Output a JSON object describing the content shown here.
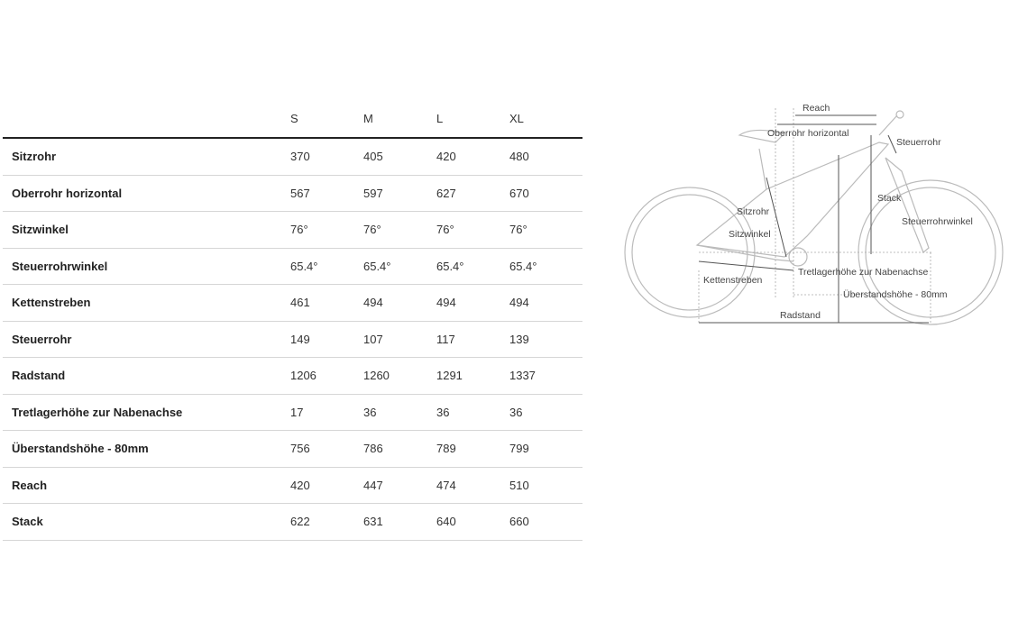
{
  "table": {
    "sizes": [
      "S",
      "M",
      "L",
      "XL"
    ],
    "rows": [
      {
        "label": "Sitzrohr",
        "values": [
          "370",
          "405",
          "420",
          "480"
        ]
      },
      {
        "label": "Oberrohr horizontal",
        "values": [
          "567",
          "597",
          "627",
          "670"
        ]
      },
      {
        "label": "Sitzwinkel",
        "values": [
          "76°",
          "76°",
          "76°",
          "76°"
        ]
      },
      {
        "label": "Steuerrohrwinkel",
        "values": [
          "65.4°",
          "65.4°",
          "65.4°",
          "65.4°"
        ]
      },
      {
        "label": "Kettenstreben",
        "values": [
          "461",
          "494",
          "494",
          "494"
        ]
      },
      {
        "label": "Steuerrohr",
        "values": [
          "149",
          "107",
          "117",
          "139"
        ]
      },
      {
        "label": "Radstand",
        "values": [
          "1206",
          "1260",
          "1291",
          "1337"
        ]
      },
      {
        "label": "Tretlagerhöhe zur Nabenachse",
        "values": [
          "17",
          "36",
          "36",
          "36"
        ]
      },
      {
        "label": "Überstandshöhe - 80mm",
        "values": [
          "756",
          "786",
          "789",
          "799"
        ]
      },
      {
        "label": "Reach",
        "values": [
          "420",
          "447",
          "474",
          "510"
        ]
      },
      {
        "label": "Stack",
        "values": [
          "622",
          "631",
          "640",
          "660"
        ]
      }
    ]
  },
  "diagram": {
    "labels": {
      "reach": "Reach",
      "top_tube": "Oberrohr horizontal",
      "head_tube": "Steuerrohr",
      "stack": "Stack",
      "seat_tube": "Sitzrohr",
      "head_angle": "Steuerrohrwinkel",
      "seat_angle": "Sitzwinkel",
      "bb_drop": "Tretlagerhöhe zur Nabenachse",
      "chainstay": "Kettenstreben",
      "standover": "Überstandshöhe - 80mm",
      "wheelbase": "Radstand"
    }
  }
}
